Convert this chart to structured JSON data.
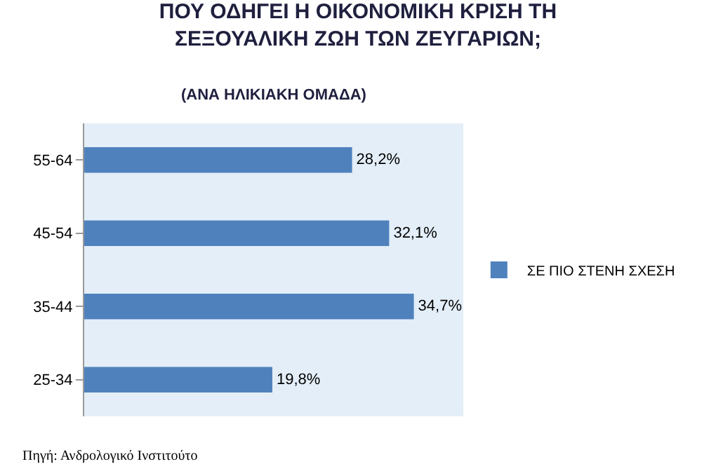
{
  "chart_data": {
    "type": "bar",
    "orientation": "horizontal",
    "title": "ΠΟΥ ΟΔΗΓΕΙ Η ΟΙΚΟΝΟΜΙΚΗ ΚΡΙΣΗ ΤΗ ΣΕΞΟΥΑΛΙΚΗ ΖΩΗ ΤΩΝ ΖΕΥΓΑΡΙΩΝ;",
    "subtitle": "(ΑΝΑ ΗΛΙΚΙΑΚΗ ΟΜΑΔΑ)",
    "categories": [
      "55-64",
      "45-54",
      "35-44",
      "25-34"
    ],
    "series": [
      {
        "name": "ΣΕ ΠΙΟ ΣΤΕΝΗ ΣΧΕΣΗ",
        "color": "#4f81bd",
        "values": [
          28.2,
          32.1,
          34.7,
          19.8
        ],
        "value_labels": [
          "28,2%",
          "32,1%",
          "34,7%",
          "19,8%"
        ]
      }
    ],
    "legend": "right",
    "annotations": [
      "Πηγή: Ανδρολογικό Ινστιτούτο"
    ]
  }
}
